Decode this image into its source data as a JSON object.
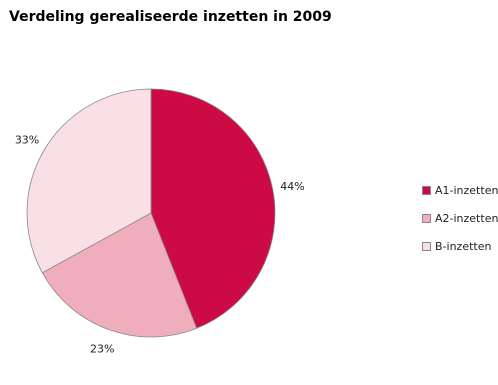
{
  "chart_data": {
    "type": "pie",
    "title": "Verdeling gerealiseerde inzetten in 2009",
    "categories": [
      "A1-inzetten",
      "A2-inzetten",
      "B-inzetten"
    ],
    "values": [
      44,
      23,
      33
    ],
    "value_labels": [
      "44%",
      "23%",
      "33%"
    ],
    "colors": [
      "#cc0a44",
      "#f0adbc",
      "#f9dfe6"
    ],
    "legend": "right",
    "start_angle": "12 o'clock, clockwise"
  }
}
